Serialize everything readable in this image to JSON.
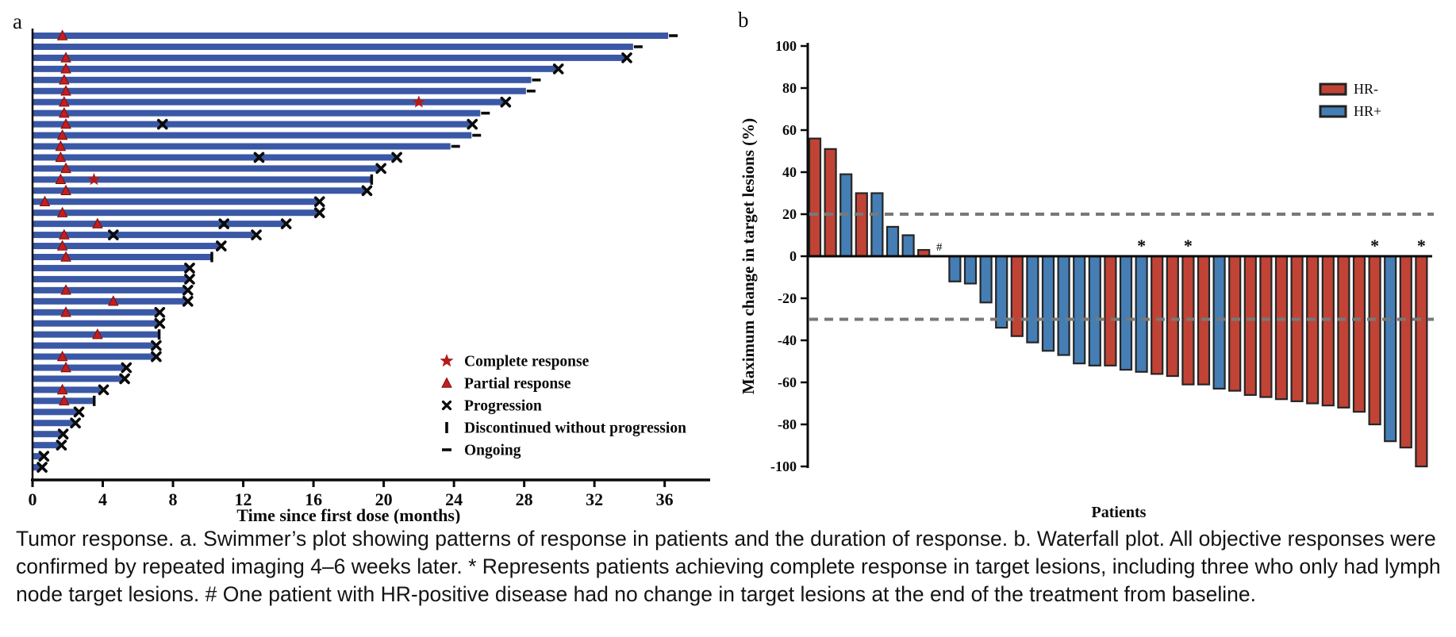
{
  "panels": {
    "a_label": "a",
    "b_label": "b"
  },
  "caption": {
    "lines": [
      "Tumor response. a. Swimmer’s plot showing patterns of response in patients and the duration of response. b. Waterfall plot. All objective responses were",
      "confirmed by repeated imaging 4–6 weeks later. * Represents patients achieving complete response in target lesions, including three who only had lymph",
      "node target lesions. # One patient with HR-positive disease had no change in target lesions at the end of the treatment from baseline."
    ]
  },
  "chart_data": [
    {
      "type": "swimmer",
      "xlabel": "Time since first dose (months)",
      "xticks": [
        0,
        4,
        8,
        12,
        16,
        20,
        24,
        28,
        32,
        36
      ],
      "xlim": [
        0,
        38.5
      ],
      "bar_color": "#3a58a5",
      "marker_colors": {
        "response_red": "#c41e1e",
        "star_red": "#b51a1a",
        "event_black": "#0a0a0a"
      },
      "legend": [
        {
          "marker": "star",
          "label": "Complete response"
        },
        {
          "marker": "triangle",
          "label": "Partial response"
        },
        {
          "marker": "x",
          "label": "Progression"
        },
        {
          "marker": "bar",
          "label": "Discontinued without progression"
        },
        {
          "marker": "dash",
          "label": "Ongoing"
        }
      ],
      "patients": [
        {
          "duration": 36.2,
          "end": "ongoing",
          "pr": [
            1.7
          ],
          "cr": [],
          "x_events": []
        },
        {
          "duration": 34.2,
          "end": "ongoing",
          "pr": [],
          "cr": [],
          "x_events": []
        },
        {
          "duration": 33.8,
          "end": "progression",
          "pr": [
            1.9
          ],
          "cr": [],
          "x_events": []
        },
        {
          "duration": 29.9,
          "end": "progression",
          "pr": [
            1.9
          ],
          "cr": [],
          "x_events": []
        },
        {
          "duration": 28.4,
          "end": "ongoing",
          "pr": [
            1.8
          ],
          "cr": [],
          "x_events": []
        },
        {
          "duration": 28.1,
          "end": "ongoing",
          "pr": [
            1.9
          ],
          "cr": [],
          "x_events": []
        },
        {
          "duration": 26.9,
          "end": "progression",
          "pr": [
            1.8
          ],
          "cr": [
            22.0
          ],
          "x_events": []
        },
        {
          "duration": 25.5,
          "end": "ongoing",
          "pr": [
            1.8
          ],
          "cr": [],
          "x_events": []
        },
        {
          "duration": 25.0,
          "end": "progression",
          "pr": [
            1.9
          ],
          "cr": [],
          "x_events": [
            7.4
          ]
        },
        {
          "duration": 25.0,
          "end": "ongoing",
          "pr": [
            1.7
          ],
          "cr": [],
          "x_events": []
        },
        {
          "duration": 23.8,
          "end": "ongoing",
          "pr": [
            1.6
          ],
          "cr": [],
          "x_events": []
        },
        {
          "duration": 20.7,
          "end": "progression",
          "pr": [
            1.6
          ],
          "cr": [],
          "x_events": [
            12.9
          ]
        },
        {
          "duration": 19.8,
          "end": "progression",
          "pr": [
            1.9
          ],
          "cr": [],
          "x_events": []
        },
        {
          "duration": 19.3,
          "end": "discontinued",
          "pr": [
            1.6
          ],
          "cr": [
            3.5
          ],
          "x_events": []
        },
        {
          "duration": 19.0,
          "end": "progression",
          "pr": [
            1.9
          ],
          "cr": [],
          "x_events": []
        },
        {
          "duration": 16.3,
          "end": "progression",
          "pr": [
            0.7
          ],
          "cr": [],
          "x_events": []
        },
        {
          "duration": 16.3,
          "end": "progression",
          "pr": [
            1.7
          ],
          "cr": [],
          "x_events": []
        },
        {
          "duration": 14.4,
          "end": "progression",
          "pr": [
            3.7
          ],
          "cr": [],
          "x_events": [
            10.9
          ]
        },
        {
          "duration": 12.7,
          "end": "progression",
          "pr": [
            1.8
          ],
          "cr": [],
          "x_events": [
            4.6
          ]
        },
        {
          "duration": 10.7,
          "end": "progression",
          "pr": [
            1.7
          ],
          "cr": [],
          "x_events": []
        },
        {
          "duration": 10.2,
          "end": "discontinued",
          "pr": [
            1.9
          ],
          "cr": [],
          "x_events": []
        },
        {
          "duration": 8.9,
          "end": "progression",
          "pr": [],
          "cr": [],
          "x_events": []
        },
        {
          "duration": 8.9,
          "end": "progression",
          "pr": [],
          "cr": [],
          "x_events": []
        },
        {
          "duration": 8.8,
          "end": "progression",
          "pr": [
            1.9
          ],
          "cr": [],
          "x_events": []
        },
        {
          "duration": 8.8,
          "end": "progression",
          "pr": [
            4.6
          ],
          "cr": [],
          "x_events": []
        },
        {
          "duration": 7.2,
          "end": "progression",
          "pr": [
            1.9
          ],
          "cr": [],
          "x_events": []
        },
        {
          "duration": 7.2,
          "end": "progression",
          "pr": [],
          "cr": [],
          "x_events": []
        },
        {
          "duration": 7.2,
          "end": "discontinued",
          "pr": [
            3.7
          ],
          "cr": [],
          "x_events": []
        },
        {
          "duration": 7.0,
          "end": "progression",
          "pr": [],
          "cr": [],
          "x_events": []
        },
        {
          "duration": 7.0,
          "end": "progression",
          "pr": [
            1.7
          ],
          "cr": [],
          "x_events": []
        },
        {
          "duration": 5.3,
          "end": "progression",
          "pr": [
            1.9
          ],
          "cr": [],
          "x_events": []
        },
        {
          "duration": 5.2,
          "end": "progression",
          "pr": [],
          "cr": [],
          "x_events": []
        },
        {
          "duration": 4.0,
          "end": "progression",
          "pr": [
            1.7
          ],
          "cr": [],
          "x_events": []
        },
        {
          "duration": 3.5,
          "end": "discontinued",
          "pr": [
            1.8
          ],
          "cr": [],
          "x_events": []
        },
        {
          "duration": 2.6,
          "end": "progression",
          "pr": [],
          "cr": [],
          "x_events": []
        },
        {
          "duration": 2.4,
          "end": "progression",
          "pr": [],
          "cr": [],
          "x_events": []
        },
        {
          "duration": 1.7,
          "end": "progression",
          "pr": [],
          "cr": [],
          "x_events": []
        },
        {
          "duration": 1.6,
          "end": "progression",
          "pr": [],
          "cr": [],
          "x_events": []
        },
        {
          "duration": 0.6,
          "end": "progression",
          "pr": [],
          "cr": [],
          "x_events": []
        },
        {
          "duration": 0.5,
          "end": "progression",
          "pr": [],
          "cr": [],
          "x_events": []
        }
      ]
    },
    {
      "type": "waterfall",
      "ylabel": "Maximum change in target lesions (%)",
      "xlabel": "Patients",
      "yticks": [
        100,
        80,
        60,
        40,
        20,
        0,
        -20,
        -40,
        -60,
        -80,
        -100
      ],
      "ylim": [
        -100,
        100
      ],
      "reference_lines": [
        20,
        -30
      ],
      "reference_line_color": "#787878",
      "bar_outline_color": "#262626",
      "legend": [
        {
          "label": "HR-",
          "color": "#c14335"
        },
        {
          "label": "HR+",
          "color": "#447eb4"
        }
      ],
      "bars": [
        {
          "value": 56,
          "group": "HR-",
          "annotation": ""
        },
        {
          "value": 51,
          "group": "HR-",
          "annotation": ""
        },
        {
          "value": 39,
          "group": "HR+",
          "annotation": ""
        },
        {
          "value": 30,
          "group": "HR-",
          "annotation": ""
        },
        {
          "value": 30,
          "group": "HR+",
          "annotation": ""
        },
        {
          "value": 14,
          "group": "HR+",
          "annotation": ""
        },
        {
          "value": 10,
          "group": "HR+",
          "annotation": ""
        },
        {
          "value": 3,
          "group": "HR-",
          "annotation": ""
        },
        {
          "value": 0,
          "group": "HR+",
          "annotation": "#"
        },
        {
          "value": -12,
          "group": "HR+",
          "annotation": ""
        },
        {
          "value": -13,
          "group": "HR+",
          "annotation": ""
        },
        {
          "value": -22,
          "group": "HR+",
          "annotation": ""
        },
        {
          "value": -34,
          "group": "HR+",
          "annotation": ""
        },
        {
          "value": -38,
          "group": "HR-",
          "annotation": ""
        },
        {
          "value": -41,
          "group": "HR+",
          "annotation": ""
        },
        {
          "value": -45,
          "group": "HR+",
          "annotation": ""
        },
        {
          "value": -47,
          "group": "HR+",
          "annotation": ""
        },
        {
          "value": -51,
          "group": "HR+",
          "annotation": ""
        },
        {
          "value": -52,
          "group": "HR+",
          "annotation": ""
        },
        {
          "value": -52,
          "group": "HR-",
          "annotation": ""
        },
        {
          "value": -54,
          "group": "HR+",
          "annotation": ""
        },
        {
          "value": -55,
          "group": "HR+",
          "annotation": "*"
        },
        {
          "value": -56,
          "group": "HR-",
          "annotation": ""
        },
        {
          "value": -57,
          "group": "HR-",
          "annotation": ""
        },
        {
          "value": -61,
          "group": "HR-",
          "annotation": "*"
        },
        {
          "value": -61,
          "group": "HR-",
          "annotation": ""
        },
        {
          "value": -63,
          "group": "HR+",
          "annotation": ""
        },
        {
          "value": -64,
          "group": "HR-",
          "annotation": ""
        },
        {
          "value": -66,
          "group": "HR-",
          "annotation": ""
        },
        {
          "value": -67,
          "group": "HR-",
          "annotation": ""
        },
        {
          "value": -68,
          "group": "HR-",
          "annotation": ""
        },
        {
          "value": -69,
          "group": "HR-",
          "annotation": ""
        },
        {
          "value": -70,
          "group": "HR-",
          "annotation": ""
        },
        {
          "value": -71,
          "group": "HR-",
          "annotation": ""
        },
        {
          "value": -72,
          "group": "HR-",
          "annotation": ""
        },
        {
          "value": -74,
          "group": "HR-",
          "annotation": ""
        },
        {
          "value": -80,
          "group": "HR-",
          "annotation": "*"
        },
        {
          "value": -88,
          "group": "HR+",
          "annotation": ""
        },
        {
          "value": -91,
          "group": "HR-",
          "annotation": ""
        },
        {
          "value": -100,
          "group": "HR-",
          "annotation": "*"
        }
      ]
    }
  ]
}
